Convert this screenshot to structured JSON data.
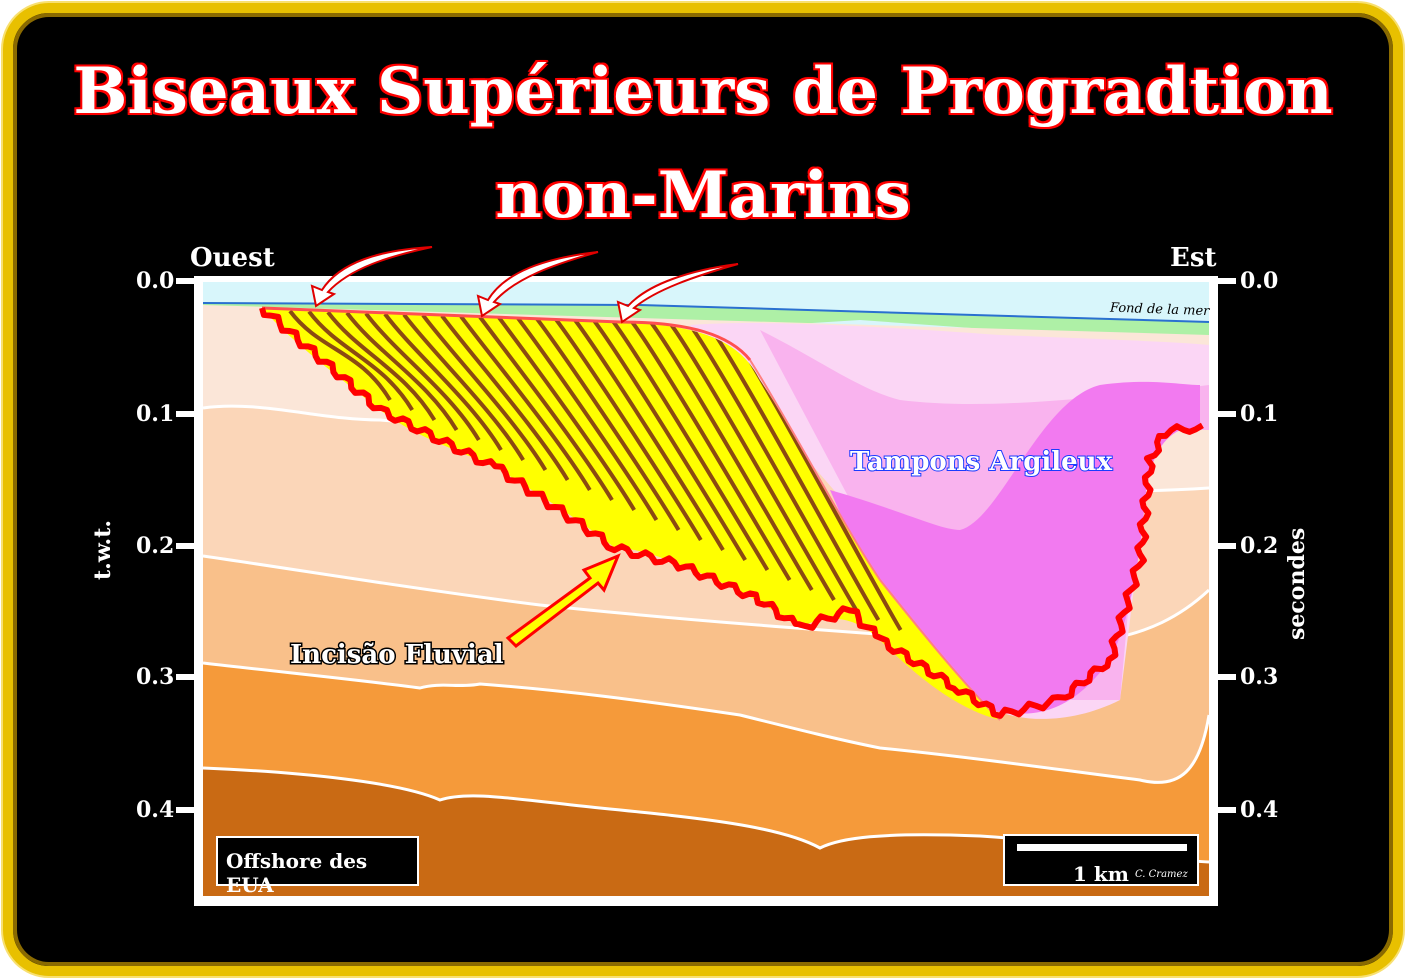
{
  "title_line1": "Biseaux Supérieurs de Progradtion",
  "title_line2": "non-Marins",
  "west_label": "Ouest",
  "east_label": "Est",
  "left_axis_label": "t.w.t.",
  "right_axis_label": "secondes",
  "ticks": [
    "0.0",
    "0.1",
    "0.2",
    "0.3",
    "0.4"
  ],
  "sea_floor_label": "Fond de la mer",
  "clay_plugs_label": "Tampons Argileux",
  "incision_label": "Incisão Fluvial",
  "location_label": "Offshore des EUA",
  "scale_label": "1 km",
  "author_label": "C. Cramez",
  "colors": {
    "frame": "#e8c000",
    "title_stroke": "#e00000",
    "water": "#d8f6fb",
    "green_layer": "#aef0a6",
    "layer1": "#fbe6d8",
    "layer2": "#fbd6b8",
    "layer3": "#f9c08a",
    "layer4": "#f59a3a",
    "layer5": "#c96a14",
    "progradation_fill": "#ffff00",
    "clinoform_lines": "#8b4a12",
    "clay_plug_light": "#fbd6f5",
    "clay_plug_mid": "#f9b3ee",
    "clay_plug_dark": "#f27af0",
    "incision_line": "#ff0000"
  }
}
